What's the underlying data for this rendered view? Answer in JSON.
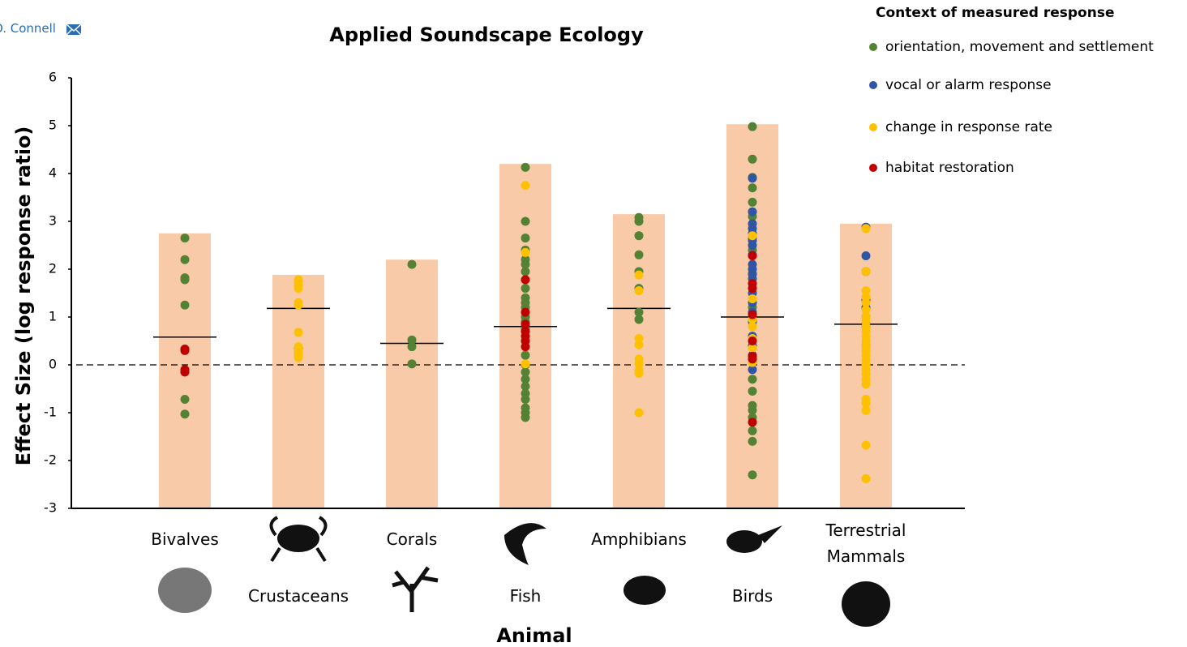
{
  "header": {
    "author": "O. Connell"
  },
  "chart_data": {
    "type": "strip",
    "title": "Applied Soundscape Ecology",
    "xlabel": "Animal",
    "ylabel": "Effect Size (log response ratio)",
    "categories": [
      "Bivalves",
      "Crustaceans",
      "Corals",
      "Fish",
      "Amphibians",
      "Birds",
      "Terrestrial Mammals"
    ],
    "ylim": [
      -3,
      6
    ],
    "yticks": [
      -3,
      -2,
      -1,
      0,
      1,
      2,
      3,
      4,
      5,
      6
    ],
    "bar_values": [
      2.75,
      1.88,
      2.2,
      4.2,
      3.15,
      5.03,
      2.95
    ],
    "bar_color": "#f8caa8",
    "mean_values": [
      0.58,
      1.18,
      0.45,
      0.8,
      1.18,
      1.0,
      0.85
    ],
    "zero_line": true,
    "legend_title": "Context of measured response",
    "legend": "upper right",
    "series": [
      {
        "name": "orientation, movement and settlement",
        "color": "#548235",
        "values": [
          [
            2.65,
            2.2,
            1.82,
            1.78,
            1.25,
            -0.72,
            -1.03
          ],
          [
            0.35
          ],
          [
            2.1,
            0.52,
            0.38,
            0.02
          ],
          [
            4.13,
            3.0,
            2.65,
            2.4,
            2.2,
            2.1,
            1.95,
            1.6,
            1.4,
            1.3,
            1.2,
            1.0,
            0.9,
            0.75,
            0.5,
            0.2,
            0,
            -0.15,
            -0.3,
            -0.45,
            -0.6,
            -0.72,
            -0.9,
            -1.0,
            -1.1
          ],
          [
            3.08,
            3.0,
            2.7,
            2.3,
            1.95,
            1.6,
            1.1,
            0.95
          ],
          [
            4.98,
            4.3,
            3.92,
            3.7,
            3.4,
            3.1,
            2.65,
            2.4,
            1.9,
            1.2,
            -0.3,
            -0.55,
            -0.85,
            -0.95,
            -1.1,
            -1.38,
            -1.6,
            -2.3
          ],
          []
        ]
      },
      {
        "name": "vocal or alarm response",
        "color": "#2f55a4",
        "values": [
          [],
          [],
          [],
          [],
          [],
          [
            3.9,
            3.2,
            2.95,
            2.85,
            2.75,
            2.6,
            2.5,
            2.3,
            2.1,
            2.0,
            1.9,
            1.8,
            1.5,
            1.3,
            1.1,
            0.9,
            0.6,
            0.4,
            0.2,
            -0.1
          ],
          [
            2.88,
            2.28,
            1.95,
            1.35,
            1.2,
            1.0,
            0.8,
            0.4
          ]
        ]
      },
      {
        "name": "change in response rate",
        "color": "#ffc000",
        "values": [
          [],
          [
            1.78,
            1.72,
            1.65,
            1.6,
            1.3,
            1.25,
            0.68,
            0.38,
            0.3,
            0.22,
            0.15
          ],
          [],
          [
            3.75,
            2.35,
            0.02
          ],
          [
            1.88,
            1.55,
            0.55,
            0.42,
            0.12,
            0.02,
            -0.12,
            -0.18,
            -1.0
          ],
          [
            2.7,
            1.38,
            0.95,
            0.8,
            0.55,
            0.35,
            0.05
          ],
          [
            2.85,
            1.95,
            1.55,
            1.42,
            1.3,
            1.15,
            1.0,
            0.9,
            0.8,
            0.7,
            0.6,
            0.5,
            0.4,
            0.3,
            0.2,
            0.1,
            0,
            -0.1,
            -0.2,
            -0.3,
            -0.4,
            -0.72,
            -0.8,
            -0.95,
            -1.68,
            -2.38
          ]
        ]
      },
      {
        "name": "habitat restoration",
        "color": "#c00000",
        "values": [
          [
            0.33,
            0.3,
            -0.1,
            -0.15
          ],
          [],
          [],
          [
            1.78,
            1.1,
            0.85,
            0.7,
            0.6,
            0.5,
            0.38
          ],
          [],
          [
            2.28,
            1.7,
            1.6,
            1.05,
            0.5,
            0.18,
            0.12,
            -1.2
          ],
          []
        ]
      }
    ]
  }
}
